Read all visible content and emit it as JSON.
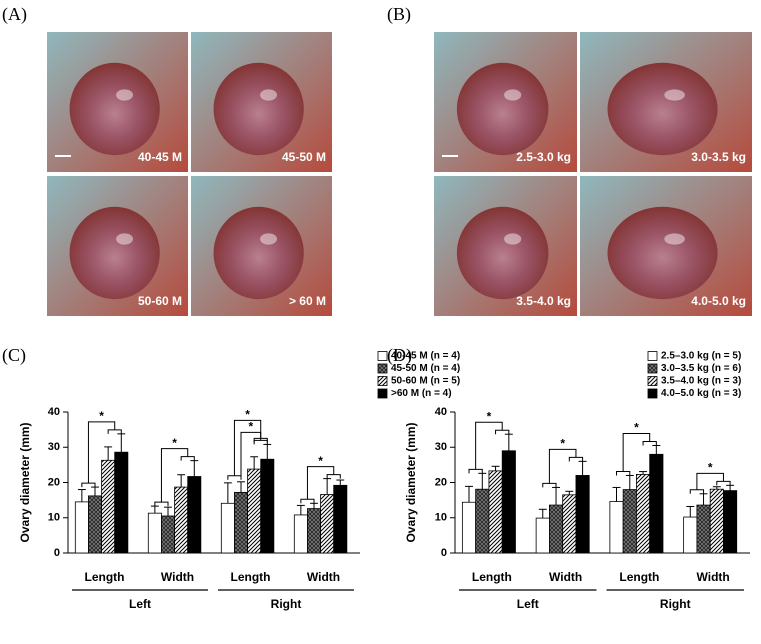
{
  "panels": [
    {
      "label": "(A)",
      "captions": [
        "40-45 M",
        "45-50 M",
        "50-60 M",
        "> 60  M"
      ]
    },
    {
      "label": "(B)",
      "captions": [
        "2.5-3.0 kg",
        "3.0-3.5 kg",
        "3.5-4.0 kg",
        "4.0-5.0 kg"
      ]
    }
  ],
  "chart_data": [
    {
      "type": "bar",
      "panel_label": "(C)",
      "ylabel": "Ovary diameter (mm)",
      "categories": [
        "Length",
        "Width",
        "Length",
        "Width"
      ],
      "groups": [
        "Left",
        "Right"
      ],
      "ylim": [
        0,
        40
      ],
      "yticks": [
        0,
        10,
        20,
        30,
        40
      ],
      "series": [
        {
          "name": "40-45 M (n = 4)",
          "color": "#ffffff",
          "pattern": "none",
          "values": [
            14.5,
            11.3,
            14.1,
            10.8
          ],
          "errors": [
            3.5,
            2.0,
            5.8,
            2.7
          ]
        },
        {
          "name": "45-50 M (n = 4)",
          "color": "#7a7a7a",
          "pattern": "crosshatch",
          "values": [
            16.2,
            10.5,
            17.2,
            12.6
          ],
          "errors": [
            2.5,
            2.5,
            3.0,
            1.5
          ]
        },
        {
          "name": "50-60 M (n = 5)",
          "color": "#ffffff",
          "pattern": "diagonal",
          "values": [
            26.3,
            18.7,
            23.8,
            16.6
          ],
          "errors": [
            3.8,
            3.5,
            3.5,
            4.5
          ]
        },
        {
          "name": ">60 M (n = 4)",
          "color": "#000000",
          "pattern": "none",
          "values": [
            28.6,
            21.7,
            26.6,
            19.2
          ],
          "errors": [
            5.2,
            4.5,
            4.2,
            1.5
          ]
        }
      ],
      "significance": [
        {
          "category": 0,
          "between": [
            [
              0,
              1
            ],
            [
              2,
              3
            ]
          ],
          "label": "*"
        },
        {
          "category": 1,
          "between": [
            [
              0,
              1
            ],
            [
              2,
              3
            ]
          ],
          "label": "*"
        },
        {
          "category": 2,
          "between": [
            [
              1
            ],
            [
              2,
              3
            ]
          ],
          "label": "*"
        },
        {
          "category": 2,
          "between": [
            [
              0,
              1
            ],
            [
              2,
              3
            ]
          ],
          "label": "*"
        },
        {
          "category": 3,
          "between": [
            [
              0,
              1
            ],
            [
              2,
              3
            ]
          ],
          "label": "*"
        }
      ]
    },
    {
      "type": "bar",
      "panel_label": "(D)",
      "ylabel": "Ovary diameter (mm)",
      "categories": [
        "Length",
        "Width",
        "Length",
        "Width"
      ],
      "groups": [
        "Left",
        "Right"
      ],
      "ylim": [
        0,
        40
      ],
      "yticks": [
        0,
        10,
        20,
        30,
        40
      ],
      "series": [
        {
          "name": "2.5–3.0 kg (n = 5)",
          "color": "#ffffff",
          "pattern": "none",
          "values": [
            14.4,
            9.9,
            14.6,
            10.2
          ],
          "errors": [
            4.5,
            2.5,
            4.0,
            3.0
          ]
        },
        {
          "name": "3.0–3.5 kg (n = 6)",
          "color": "#7a7a7a",
          "pattern": "crosshatch",
          "values": [
            18.1,
            13.6,
            18.0,
            13.6
          ],
          "errors": [
            4.5,
            5.0,
            4.0,
            3.2
          ]
        },
        {
          "name": "3.5–4.0 kg (n = 3)",
          "color": "#ffffff",
          "pattern": "diagonal",
          "values": [
            23.3,
            16.5,
            22.3,
            18.1
          ],
          "errors": [
            1.3,
            1.0,
            0.8,
            0.7
          ]
        },
        {
          "name": "4.0–5.0 kg (n = 3)",
          "color": "#000000",
          "pattern": "none",
          "values": [
            29.0,
            22.0,
            28.0,
            17.7
          ],
          "errors": [
            4.7,
            4.0,
            2.5,
            1.5
          ]
        }
      ],
      "significance": [
        {
          "category": 0,
          "between": [
            [
              0,
              1
            ],
            [
              2,
              3
            ]
          ],
          "label": "*"
        },
        {
          "category": 1,
          "between": [
            [
              0,
              1
            ],
            [
              2,
              3
            ]
          ],
          "label": "*"
        },
        {
          "category": 2,
          "between": [
            [
              0,
              1
            ],
            [
              2,
              3
            ]
          ],
          "label": "*"
        },
        {
          "category": 3,
          "between": [
            [
              0,
              1
            ],
            [
              2,
              3
            ]
          ],
          "label": "*"
        }
      ]
    }
  ]
}
